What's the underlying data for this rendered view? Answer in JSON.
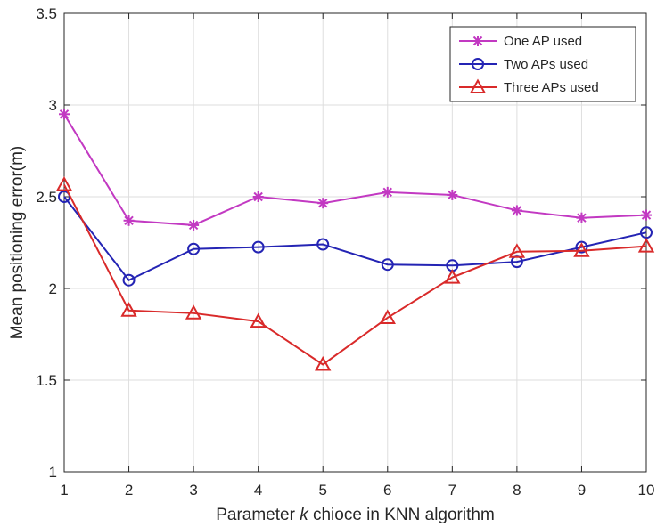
{
  "chart_data": {
    "type": "line",
    "title": "",
    "xlabel": "Parameter k chioce in KNN algorithm",
    "xlabel_parts": [
      "Parameter ",
      "k",
      " chioce in KNN algorithm"
    ],
    "ylabel": "Mean positioning error(m)",
    "x": [
      1,
      2,
      3,
      4,
      5,
      6,
      7,
      8,
      9,
      10
    ],
    "xlim": [
      1,
      10
    ],
    "ylim": [
      1,
      3.5
    ],
    "xticks": [
      "1",
      "2",
      "3",
      "4",
      "5",
      "6",
      "7",
      "8",
      "9",
      "10"
    ],
    "yticks": [
      {
        "value": 1,
        "label": "1"
      },
      {
        "value": 1.5,
        "label": "1.5"
      },
      {
        "value": 2,
        "label": "2"
      },
      {
        "value": 2.5,
        "label": "2.5"
      },
      {
        "value": 3,
        "label": "3"
      },
      {
        "value": 3.5,
        "label": "3.5"
      }
    ],
    "grid": true,
    "legend_position": "top-right",
    "series": [
      {
        "name": "One AP used",
        "color": "#c239c2",
        "marker": "asterisk",
        "values": [
          2.95,
          2.37,
          2.345,
          2.5,
          2.465,
          2.525,
          2.51,
          2.425,
          2.385,
          2.4
        ]
      },
      {
        "name": "Two APs used",
        "color": "#2424b4",
        "marker": "circle",
        "values": [
          2.5,
          2.045,
          2.215,
          2.225,
          2.24,
          2.13,
          2.125,
          2.145,
          2.225,
          2.305
        ]
      },
      {
        "name": "Three APs used",
        "color": "#d92a2a",
        "marker": "triangle",
        "values": [
          2.565,
          1.88,
          1.865,
          1.82,
          1.585,
          1.84,
          2.06,
          2.2,
          2.205,
          2.23
        ]
      }
    ]
  }
}
